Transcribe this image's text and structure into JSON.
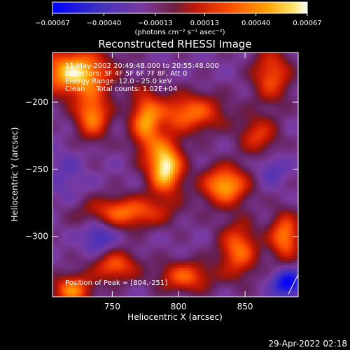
{
  "chart_data": {
    "type": "heatmap",
    "title": "Reconstructed RHESSI Image",
    "xlabel": "Heliocentric X (arcsec)",
    "ylabel": "Heliocentric Y (arcsec)",
    "xlim": [
      705,
      890
    ],
    "ylim": [
      -345,
      -163
    ],
    "x_ticks": [
      750,
      800,
      850
    ],
    "y_ticks": [
      -200,
      -250,
      -300
    ],
    "x_tick_labels": [
      "750",
      "800",
      "850"
    ],
    "y_tick_labels": [
      "−200",
      "−250",
      "−300"
    ],
    "colorbar": {
      "range": [
        -0.00067,
        0.00067
      ],
      "ticks": [
        -0.00067,
        -0.0004,
        -0.00013,
        0.00013,
        0.0004,
        0.00067
      ],
      "tick_labels": [
        "−0.00067",
        "−0.00040",
        "−0.00013",
        "0.00013",
        "0.00040",
        "0.00067"
      ],
      "unit_label": "(photons cm⁻² s⁻¹ asec⁻²)",
      "colors": [
        "#0000ff",
        "#5a3aa8",
        "#7a3aa0",
        "#c02010",
        "#ff4000",
        "#ff8a00",
        "#ffd040",
        "#ffffff"
      ]
    },
    "annotations": [
      "11-May-2002 20:49:48.000 to 20:55:48.000",
      "Detectors: 3F 4F 5F 6F 7F 8F, Att 0",
      "Energy Range: 12.0 - 25.0 keV",
      "Clean     Total counts: 1.02E+04"
    ],
    "peak_label": "Position of Peak = [804,-251]",
    "peak": {
      "x": 804,
      "y": -251
    },
    "sources": [
      {
        "x": 722,
        "y": -178,
        "value": 0.0006,
        "sx": 18,
        "sy": 12
      },
      {
        "x": 790,
        "y": -248,
        "value": 0.00067,
        "sx": 9,
        "sy": 14
      },
      {
        "x": 808,
        "y": -208,
        "value": 0.00035,
        "sx": 18,
        "sy": 10
      },
      {
        "x": 775,
        "y": -215,
        "value": 0.00038,
        "sx": 8,
        "sy": 16
      },
      {
        "x": 835,
        "y": -262,
        "value": 0.0005,
        "sx": 12,
        "sy": 10
      },
      {
        "x": 760,
        "y": -282,
        "value": 0.00035,
        "sx": 22,
        "sy": 8
      },
      {
        "x": 845,
        "y": -310,
        "value": 0.00035,
        "sx": 10,
        "sy": 14
      },
      {
        "x": 880,
        "y": -300,
        "value": 0.0004,
        "sx": 8,
        "sy": 12
      },
      {
        "x": 720,
        "y": -340,
        "value": 0.0004,
        "sx": 10,
        "sy": 8
      },
      {
        "x": 735,
        "y": -210,
        "value": 0.0004,
        "sx": 9,
        "sy": 12
      },
      {
        "x": 805,
        "y": -330,
        "value": 0.0003,
        "sx": 14,
        "sy": 8
      },
      {
        "x": 870,
        "y": -180,
        "value": 0.00028,
        "sx": 10,
        "sy": 14
      },
      {
        "x": 752,
        "y": -322,
        "value": 0.0003,
        "sx": 12,
        "sy": 8
      },
      {
        "x": 860,
        "y": -225,
        "value": 0.0002,
        "sx": 10,
        "sy": 10
      },
      {
        "x": 882,
        "y": -335,
        "value": -0.00067,
        "sx": 8,
        "sy": 7
      },
      {
        "x": 740,
        "y": -300,
        "value": -0.00045,
        "sx": 8,
        "sy": 10
      },
      {
        "x": 870,
        "y": -250,
        "value": -0.00035,
        "sx": 8,
        "sy": 8
      },
      {
        "x": 715,
        "y": -255,
        "value": -0.0003,
        "sx": 10,
        "sy": 14
      }
    ]
  },
  "footer": {
    "timestamp": "29-Apr-2022 02:18"
  }
}
